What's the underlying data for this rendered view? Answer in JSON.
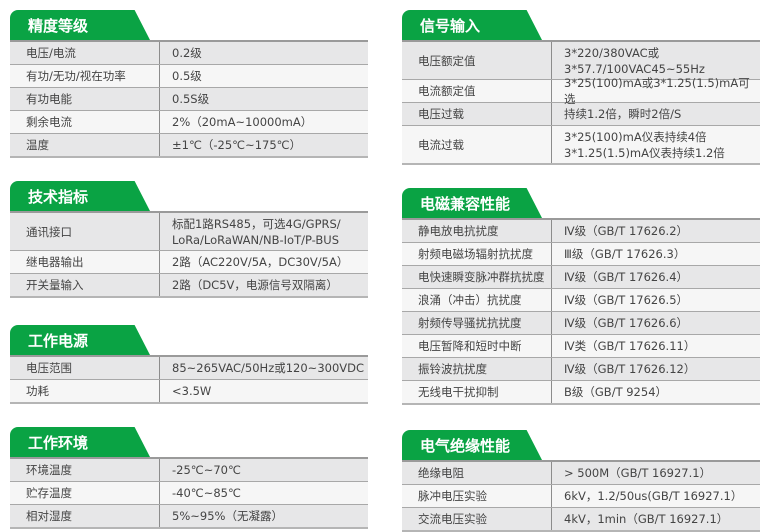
{
  "colors": {
    "accent": "#0aa344"
  },
  "sections": [
    {
      "title": "精度等级",
      "column": "left",
      "rows": [
        {
          "label": "电压/电流",
          "value": "0.2级"
        },
        {
          "label": "有功/无功/视在功率",
          "value": "0.5级"
        },
        {
          "label": "有功电能",
          "value": "0.5S级"
        },
        {
          "label": "剩余电流",
          "value": "2%（20mA~10000mA）"
        },
        {
          "label": "温度",
          "value": "±1℃（-25℃~175℃）"
        }
      ]
    },
    {
      "title": "技术指标",
      "column": "left",
      "rows": [
        {
          "label": "通讯接口",
          "value": "标配1路RS485，可选4G/GPRS/\nLoRa/LoRaWAN/NB-IoT/P-BUS"
        },
        {
          "label": "继电器输出",
          "value": "2路（AC220V/5A，DC30V/5A）"
        },
        {
          "label": "开关量输入",
          "value": "2路（DC5V，电源信号双隔离）"
        }
      ]
    },
    {
      "title": "工作电源",
      "column": "left",
      "rows": [
        {
          "label": "电压范围",
          "value": "85~265VAC/50Hz或120~300VDC"
        },
        {
          "label": "功耗",
          "value": "<3.5W"
        }
      ]
    },
    {
      "title": "工作环境",
      "column": "left",
      "rows": [
        {
          "label": "环境温度",
          "value": "-25℃~70℃"
        },
        {
          "label": "贮存温度",
          "value": "-40℃~85℃"
        },
        {
          "label": "相对湿度",
          "value": "5%~95%（无凝露）"
        }
      ]
    },
    {
      "title": "信号输入",
      "column": "right",
      "rows": [
        {
          "label": "电压额定值",
          "value": "3*220/380VAC或\n3*57.7/100VAC45~55Hz"
        },
        {
          "label": "电流额定值",
          "value": "3*25(100)mA或3*1.25(1.5)mA可选"
        },
        {
          "label": "电压过载",
          "value": "持续1.2倍，瞬时2倍/S"
        },
        {
          "label": "电流过载",
          "value": "3*25(100)mA仪表持续4倍\n3*1.25(1.5)mA仪表持续1.2倍"
        }
      ]
    },
    {
      "title": "电磁兼容性能",
      "column": "right",
      "rows": [
        {
          "label": "静电放电抗扰度",
          "value": "Ⅳ级（GB/T 17626.2）"
        },
        {
          "label": "射频电磁场辐射抗扰度",
          "value": "Ⅲ级（GB/T 17626.3）"
        },
        {
          "label": "电快速瞬变脉冲群抗扰度",
          "value": "Ⅳ级（GB/T 17626.4）"
        },
        {
          "label": "浪涌（冲击）抗扰度",
          "value": "Ⅳ级（GB/T 17626.5）"
        },
        {
          "label": "射频传导骚扰抗扰度",
          "value": "Ⅳ级（GB/T 17626.6）"
        },
        {
          "label": "电压暂降和短时中断",
          "value": "Ⅳ类（GB/T 17626.11）"
        },
        {
          "label": "振铃波抗扰度",
          "value": "Ⅳ级（GB/T 17626.12）"
        },
        {
          "label": "无线电干扰抑制",
          "value": "B级（GB/T 9254）"
        }
      ]
    },
    {
      "title": "电气绝缘性能",
      "column": "right",
      "rows": [
        {
          "label": "绝缘电阻",
          "value": " > 500M（GB/T 16927.1）"
        },
        {
          "label": "脉冲电压实验",
          "value": "6kV，1.2/50us(GB/T 16927.1）"
        },
        {
          "label": "交流电压实验",
          "value": "4kV，1min（GB/T 16927.1）"
        }
      ]
    }
  ]
}
